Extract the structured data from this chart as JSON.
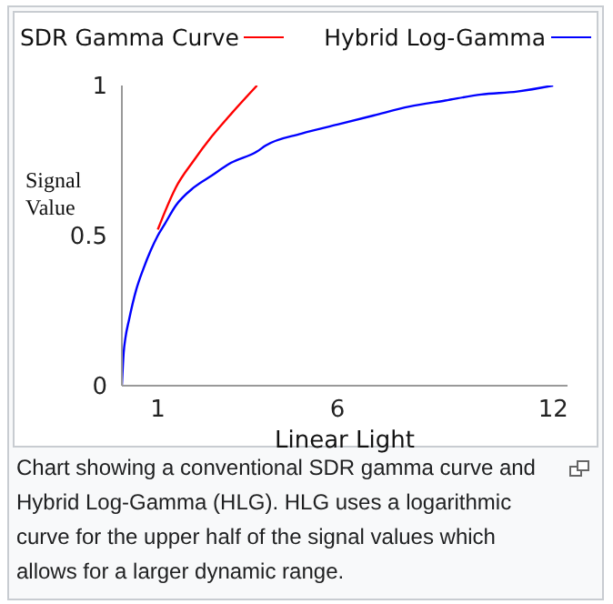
{
  "chart_data": {
    "type": "line",
    "xlabel": "Linear Light",
    "ylabel": "Signal Value",
    "x": [
      0,
      0.05,
      0.1,
      0.2,
      0.4,
      0.6,
      0.8,
      1,
      1.2,
      1.5,
      2,
      2.5,
      3,
      3.76,
      4,
      5,
      6,
      7,
      8,
      9,
      10,
      11,
      12
    ],
    "series": [
      {
        "name": "SDR Gamma Curve",
        "color": "#ff0000",
        "values": [
          null,
          null,
          null,
          null,
          null,
          null,
          null,
          0.52,
          0.58,
          0.66,
          0.75,
          0.83,
          0.9,
          1,
          null,
          null,
          null,
          null,
          null,
          null,
          null,
          null,
          null
        ]
      },
      {
        "name": "Hybrid Log-Gamma",
        "color": "#0000ff",
        "values": [
          0,
          0.11,
          0.16,
          0.22,
          0.32,
          0.39,
          0.45,
          0.5,
          0.54,
          0.6,
          0.66,
          0.7,
          0.74,
          0.78,
          0.8,
          0.84,
          0.87,
          0.9,
          0.93,
          0.95,
          0.97,
          0.98,
          1
        ]
      }
    ],
    "xlim": [
      0,
      12.4
    ],
    "xticks": [
      1,
      6,
      12
    ],
    "ylim": [
      0,
      1
    ],
    "yticks": [
      0,
      0.5,
      1
    ],
    "grid": false,
    "legend": "top",
    "marker": "none",
    "line_style": "solid",
    "annotations": [
      "Chart showing a conventional SDR gamma curve and Hybrid Log-Gamma (HLG). HLG uses a logarithmic curve for the upper half of the signal values which allows for a larger dynamic range."
    ]
  }
}
